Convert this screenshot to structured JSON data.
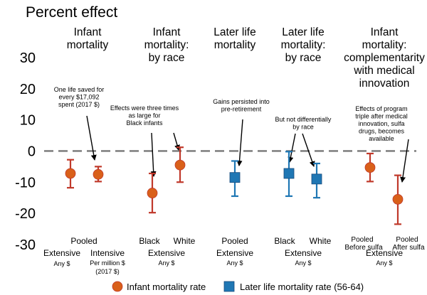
{
  "chart_data": {
    "type": "scatter",
    "title": "Percent effect",
    "ylim": [
      -33,
      38
    ],
    "yticks": [
      30,
      20,
      10,
      0,
      -10,
      -20,
      -30
    ],
    "zero_line": true,
    "grid": false,
    "legend_position": "bottom",
    "colors": {
      "infant": "#d9601a",
      "later": "#1f77b4",
      "stroke": "#c0392b",
      "zero": "#777777"
    },
    "panels": [
      {
        "title": [
          "Infant",
          "mortality"
        ]
      },
      {
        "title": [
          "Infant",
          "mortality:",
          "by race"
        ]
      },
      {
        "title": [
          "Later life",
          "mortality"
        ]
      },
      {
        "title": [
          "Later life",
          "mortality:",
          "by race"
        ]
      },
      {
        "title": [
          "Infant",
          "mortality:",
          "complementarity",
          "with medical",
          "innovation"
        ]
      }
    ],
    "series": [
      {
        "name": "Infant mortality rate",
        "marker": "circle"
      },
      {
        "name": "Later life mortality rate (56-64)",
        "marker": "square"
      }
    ],
    "points": [
      {
        "series": 0,
        "estimate": -7.2,
        "ci": [
          -11.8,
          -2.8
        ]
      },
      {
        "series": 0,
        "estimate": -7.5,
        "ci": [
          -9.8,
          -5.0
        ]
      },
      {
        "series": 0,
        "estimate": -13.5,
        "ci": [
          -19.8,
          -7.2
        ]
      },
      {
        "series": 0,
        "estimate": -4.5,
        "ci": [
          -10.0,
          1.2
        ]
      },
      {
        "series": 1,
        "estimate": -8.5,
        "ci": [
          -14.5,
          -3.2
        ]
      },
      {
        "series": 1,
        "estimate": -7.2,
        "ci": [
          -14.5,
          -0.2
        ]
      },
      {
        "series": 1,
        "estimate": -9.0,
        "ci": [
          -15.0,
          -4.0
        ]
      },
      {
        "series": 0,
        "estimate": -5.3,
        "ci": [
          -9.8,
          -0.8
        ]
      },
      {
        "series": 0,
        "estimate": -15.5,
        "ci": [
          -23.5,
          -7.8
        ]
      }
    ],
    "bottom_labels": {
      "row1": [
        {
          "text": "Pooled"
        },
        {
          "text": "Black"
        },
        {
          "text": "White"
        },
        {
          "text": "Pooled"
        },
        {
          "text": "Black"
        },
        {
          "text": "White"
        },
        {
          "text": "Pooled"
        },
        {
          "text": "Pooled"
        }
      ],
      "row1b": [
        {
          "text": "Before sulfa"
        },
        {
          "text": "After sulfa"
        }
      ],
      "row2": [
        {
          "text": "Extensive"
        },
        {
          "text": "Intensive"
        },
        {
          "text": "Extensive"
        },
        {
          "text": "Extensive"
        },
        {
          "text": "Extensive"
        },
        {
          "text": "Extensive"
        }
      ],
      "row3": [
        {
          "text": "Any $"
        },
        {
          "text": "Per million $"
        },
        {
          "text": "(2017 $)"
        },
        {
          "text": "Any $"
        },
        {
          "text": "Any $"
        },
        {
          "text": "Any $"
        },
        {
          "text": "Any $"
        }
      ]
    },
    "annotations": [
      {
        "lines": [
          "One life saved for",
          "every $17,092",
          "spent (2017 $)"
        ]
      },
      {
        "lines": [
          "Effects were three times",
          "as large for",
          "Black infants"
        ]
      },
      {
        "lines": [
          "Gains persisted into",
          "pre-retirement"
        ]
      },
      {
        "lines": [
          "But not differentially",
          "by race"
        ]
      },
      {
        "lines": [
          "Effects of program",
          "triple after medical",
          "innovation, sulfa",
          "drugs, becomes",
          "available"
        ]
      }
    ],
    "legend": [
      {
        "label": "Infant mortality rate",
        "marker": "circle"
      },
      {
        "label": "Later life mortality rate (56-64)",
        "marker": "square"
      }
    ]
  }
}
